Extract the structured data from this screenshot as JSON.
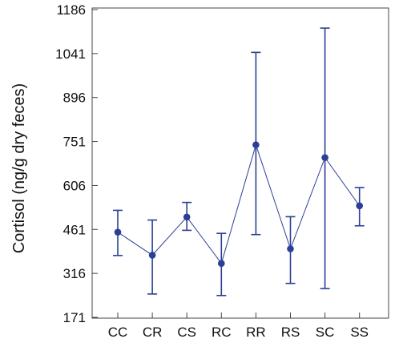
{
  "chart_data": {
    "type": "line",
    "title": "",
    "xlabel": "",
    "ylabel": "Cortisol (ng/g dry feces)",
    "categories": [
      "CC",
      "CR",
      "CS",
      "RC",
      "RR",
      "RS",
      "SC",
      "SS"
    ],
    "series": [
      {
        "values": [
          452,
          376,
          502,
          349,
          740,
          397,
          698,
          539
        ],
        "error_low": [
          375,
          248,
          458,
          243,
          444,
          283,
          266,
          473
        ],
        "error_high": [
          524,
          492,
          550,
          448,
          1045,
          503,
          1125,
          599
        ],
        "color": "#2b3f95"
      }
    ],
    "ylim": [
      171,
      1186
    ],
    "yticks": [
      171,
      316,
      461,
      606,
      751,
      896,
      1041,
      1186
    ],
    "grid": false,
    "legend": "none"
  }
}
